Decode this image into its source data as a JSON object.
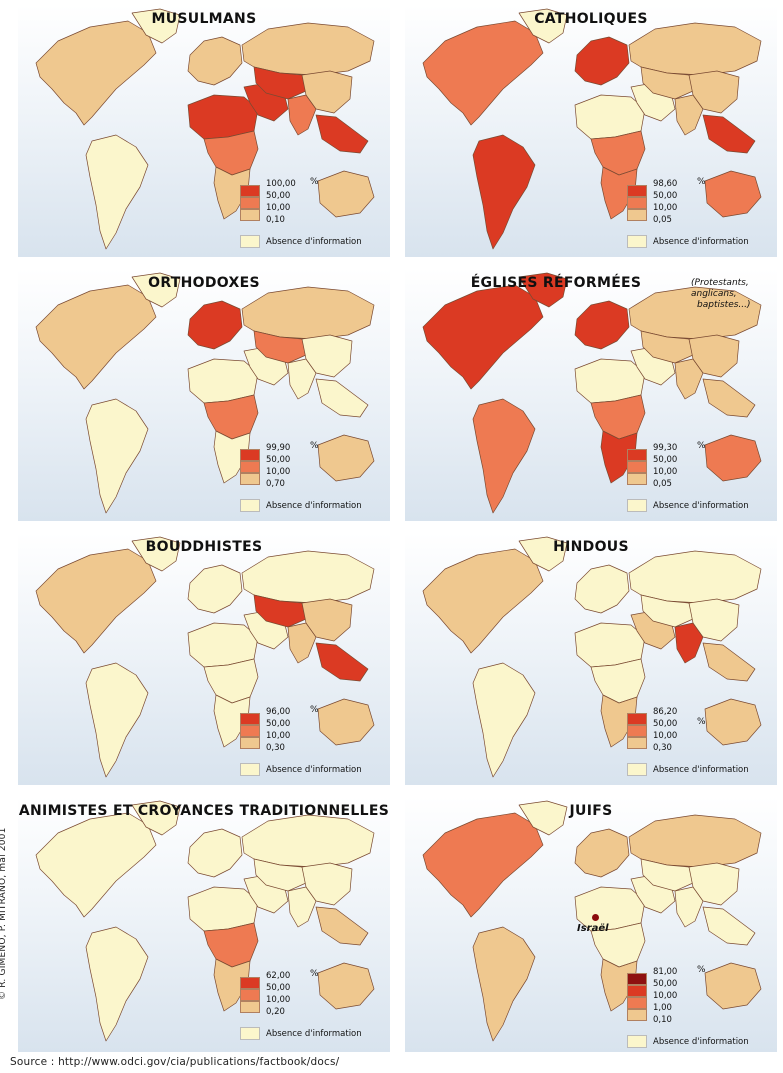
{
  "colors": {
    "none": "#fbf6cc",
    "lvl1": "#efc88f",
    "lvl2": "#ee7a52",
    "lvl3": "#db3a23",
    "lvl4": "#8e1010",
    "border": "#7a4a32"
  },
  "absence_label": "Absence d'information",
  "percent_sign": "%",
  "panels": {
    "musulmans": {
      "title": "MUSULMANS",
      "legend": [
        "100,00",
        "50,00",
        "10,00",
        "0,10"
      ],
      "shading": {
        "north_america": "lvl1",
        "greenland": "none",
        "south_america": "none",
        "europe": "lvl1",
        "russia": "lvl1",
        "north_africa": "lvl3",
        "central_africa": "lvl2",
        "southern_africa": "lvl1",
        "middle_east": "lvl3",
        "central_asia": "lvl3",
        "south_asia": "lvl2",
        "east_asia": "lvl1",
        "southeast_asia": "lvl3",
        "australia": "lvl1"
      }
    },
    "catholiques": {
      "title": "CATHOLIQUES",
      "legend": [
        "98,60",
        "50,00",
        "10,00",
        "0,05"
      ],
      "shading": {
        "north_america": "lvl2",
        "greenland": "none",
        "south_america": "lvl3",
        "europe": "lvl3",
        "russia": "lvl1",
        "north_africa": "none",
        "central_africa": "lvl2",
        "southern_africa": "lvl2",
        "middle_east": "none",
        "central_asia": "lvl1",
        "south_asia": "lvl1",
        "east_asia": "lvl1",
        "southeast_asia": "lvl3",
        "australia": "lvl2"
      }
    },
    "orthodoxes": {
      "title": "ORTHODOXES",
      "legend": [
        "99,90",
        "50,00",
        "10,00",
        "0,70"
      ],
      "shading": {
        "north_america": "lvl1",
        "greenland": "none",
        "south_america": "none",
        "europe": "lvl3",
        "russia": "lvl1",
        "north_africa": "none",
        "central_africa": "lvl2",
        "southern_africa": "none",
        "middle_east": "none",
        "central_asia": "lvl2",
        "south_asia": "none",
        "east_asia": "none",
        "southeast_asia": "none",
        "australia": "lvl1"
      }
    },
    "reformees": {
      "title": "ÉGLISES RÉFORMÉES",
      "subtitle": [
        "(Protestants, anglicans,",
        "baptistes...)"
      ],
      "legend": [
        "99,30",
        "50,00",
        "10,00",
        "0,05"
      ],
      "shading": {
        "north_america": "lvl3",
        "greenland": "lvl3",
        "south_america": "lvl2",
        "europe": "lvl3",
        "russia": "lvl1",
        "north_africa": "none",
        "central_africa": "lvl2",
        "southern_africa": "lvl3",
        "middle_east": "none",
        "central_asia": "lvl1",
        "south_asia": "lvl1",
        "east_asia": "lvl1",
        "southeast_asia": "lvl1",
        "australia": "lvl2"
      }
    },
    "bouddhistes": {
      "title": "BOUDDHISTES",
      "legend": [
        "96,00",
        "50,00",
        "10,00",
        "0,30"
      ],
      "shading": {
        "north_america": "lvl1",
        "greenland": "none",
        "south_america": "none",
        "europe": "none",
        "russia": "none",
        "north_africa": "none",
        "central_africa": "none",
        "southern_africa": "none",
        "middle_east": "none",
        "central_asia": "lvl3",
        "south_asia": "lvl1",
        "east_asia": "lvl1",
        "southeast_asia": "lvl3",
        "australia": "lvl1"
      }
    },
    "hindous": {
      "title": "HINDOUS",
      "legend": [
        "86,20",
        "50,00",
        "10,00",
        "0,30"
      ],
      "legend_pct_row": 1,
      "shading": {
        "north_america": "lvl1",
        "greenland": "none",
        "south_america": "none",
        "europe": "none",
        "russia": "none",
        "north_africa": "none",
        "central_africa": "none",
        "southern_africa": "lvl1",
        "middle_east": "lvl1",
        "central_asia": "none",
        "south_asia": "lvl3",
        "east_asia": "none",
        "southeast_asia": "lvl1",
        "australia": "lvl1"
      }
    },
    "animistes": {
      "title": "ANIMISTES ET CROYANCES TRADITIONNELLES",
      "legend": [
        "62,00",
        "50,00",
        "10,00",
        "0,20"
      ],
      "shading": {
        "north_america": "none",
        "greenland": "none",
        "south_america": "none",
        "europe": "none",
        "russia": "none",
        "north_africa": "none",
        "central_africa": "lvl2",
        "southern_africa": "lvl1",
        "middle_east": "none",
        "central_asia": "none",
        "south_asia": "none",
        "east_asia": "none",
        "southeast_asia": "lvl1",
        "australia": "lvl1"
      }
    },
    "juifs": {
      "title": "JUIFS",
      "legend": [
        "81,00",
        "50,00",
        "10,00",
        "1,00",
        "0,10"
      ],
      "israel_label": "Israël",
      "shading": {
        "north_america": "lvl2",
        "greenland": "none",
        "south_america": "lvl1",
        "europe": "lvl1",
        "russia": "lvl1",
        "north_africa": "none",
        "central_africa": "none",
        "southern_africa": "lvl1",
        "middle_east": "none",
        "central_asia": "none",
        "south_asia": "none",
        "east_asia": "none",
        "southeast_asia": "none",
        "australia": "lvl1"
      }
    }
  },
  "credit": "© R. GIMENO, P. MITRANO, mai 2001",
  "source": "Source : http://www.odci.gov/cia/publications/factbook/docs/"
}
